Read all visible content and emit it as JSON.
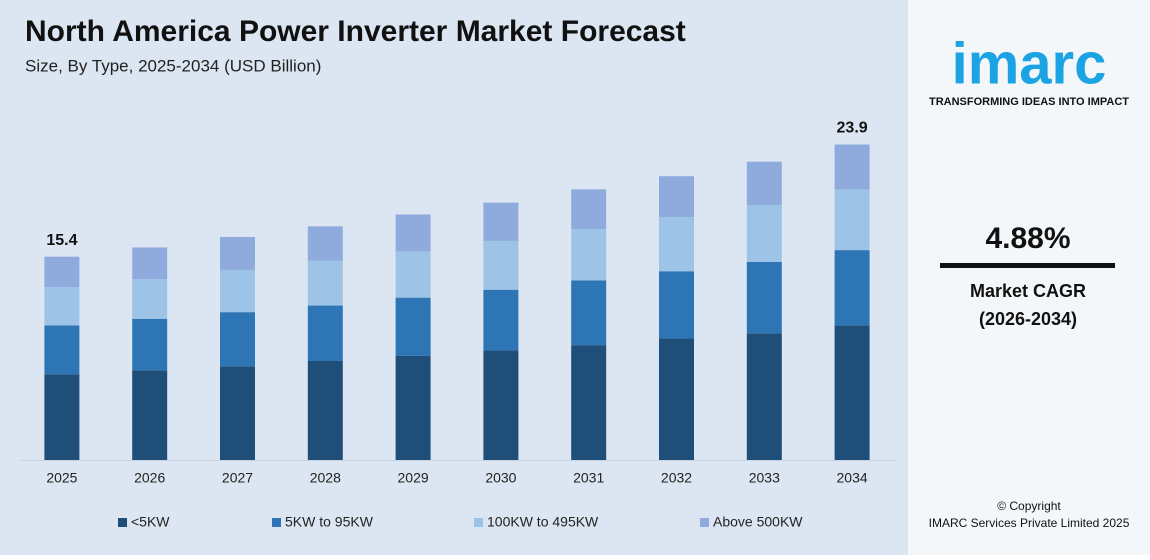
{
  "chart_data": {
    "type": "stacked-bar",
    "title": "North America Power Inverter Market Forecast",
    "subtitle": "Size, By Type, 2025-2034 (USD Billion)",
    "categories": [
      "2025",
      "2026",
      "2027",
      "2028",
      "2029",
      "2030",
      "2031",
      "2032",
      "2033",
      "2034"
    ],
    "series": [
      {
        "name": "<5KW",
        "color": "#1f4e79",
        "values": [
          6.5,
          6.8,
          7.1,
          7.5,
          7.9,
          8.3,
          8.7,
          9.2,
          9.6,
          10.2
        ]
      },
      {
        "name": "5KW to 95KW",
        "color": "#2e75b6",
        "values": [
          3.7,
          3.9,
          4.1,
          4.2,
          4.4,
          4.6,
          4.9,
          5.1,
          5.4,
          5.7
        ]
      },
      {
        "name": "100KW to 495KW",
        "color": "#9dc3e6",
        "values": [
          2.9,
          3.0,
          3.2,
          3.4,
          3.5,
          3.7,
          3.9,
          4.1,
          4.3,
          4.6
        ]
      },
      {
        "name": "Above 500KW",
        "color": "#8faadc",
        "values": [
          2.3,
          2.4,
          2.5,
          2.6,
          2.8,
          2.9,
          3.0,
          3.1,
          3.3,
          3.4
        ]
      }
    ],
    "total_labels": [
      15.4,
      null,
      null,
      null,
      null,
      null,
      null,
      null,
      null,
      23.9
    ],
    "ylim": [
      0,
      25
    ],
    "legend": "bottom"
  },
  "sidebar": {
    "logo": "imarc",
    "tagline": "TRANSFORMING IDEAS INTO IMPACT",
    "cagr": "4.88%",
    "cagr_label": "Market CAGR",
    "cagr_period": "(2026-2034)",
    "copyright": "© Copyright",
    "company": "IMARC Services Private Limited 2025"
  }
}
